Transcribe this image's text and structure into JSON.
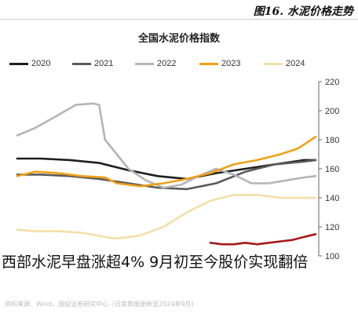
{
  "figure_label": "图16. 水泥价格走势",
  "source_note": "资料来源：Wind，国投证券研究中心（日度数据更新至2024年9月）",
  "headline": "西部水泥早盘涨超4% 9月初至今股价实现翻倍",
  "chart_data": {
    "type": "line",
    "title": "全国水泥价格指数",
    "ylim": [
      100,
      220
    ],
    "yticks": [
      100,
      120,
      140,
      160,
      180,
      200,
      220
    ],
    "yaxis_side": "right",
    "legend_position": "top",
    "x_period": "week of year",
    "xlim": [
      1,
      52
    ],
    "series": [
      {
        "name": "2020",
        "color": "#1f1f1f",
        "x": [
          1,
          5,
          10,
          15,
          20,
          25,
          30,
          35,
          40,
          45,
          50,
          52
        ],
        "y": [
          167,
          167,
          166,
          164,
          159,
          155,
          153,
          157,
          160,
          163,
          166,
          166
        ]
      },
      {
        "name": "2021",
        "color": "#5a5a5a",
        "x": [
          1,
          5,
          10,
          15,
          20,
          25,
          30,
          35,
          40,
          45,
          50,
          52
        ],
        "y": [
          156,
          156,
          155,
          153,
          150,
          147,
          146,
          150,
          158,
          163,
          165,
          166
        ]
      },
      {
        "name": "2022",
        "color": "#b5b5b5",
        "x": [
          1,
          4,
          8,
          11,
          14,
          15,
          16,
          18,
          20,
          23,
          26,
          29,
          32,
          35,
          38,
          41,
          44,
          47,
          50,
          52
        ],
        "y": [
          183,
          188,
          197,
          204,
          205,
          204,
          180,
          170,
          160,
          152,
          147,
          149,
          155,
          160,
          156,
          150,
          150,
          152,
          154,
          155
        ]
      },
      {
        "name": "2023",
        "color": "#f0a018",
        "x": [
          1,
          4,
          8,
          12,
          16,
          18,
          22,
          26,
          30,
          34,
          38,
          42,
          46,
          49,
          52
        ],
        "y": [
          155,
          158,
          157,
          155,
          154,
          150,
          148,
          150,
          153,
          157,
          163,
          166,
          170,
          174,
          182
        ]
      },
      {
        "name": "2024",
        "color": "#f3dfa8",
        "x": [
          1,
          4,
          8,
          12,
          16,
          18,
          22,
          26,
          30,
          34,
          38,
          42,
          46,
          49,
          52
        ],
        "y": [
          118,
          117,
          117,
          116,
          113,
          112,
          114,
          120,
          130,
          138,
          142,
          142,
          140,
          140,
          140
        ]
      },
      {
        "name": "2024",
        "color": "#a81818",
        "x": [
          34,
          36,
          38,
          40,
          42,
          44,
          46,
          48,
          50,
          52
        ],
        "y": [
          109,
          108,
          108,
          109,
          108,
          109,
          110,
          111,
          113,
          115
        ]
      }
    ]
  }
}
